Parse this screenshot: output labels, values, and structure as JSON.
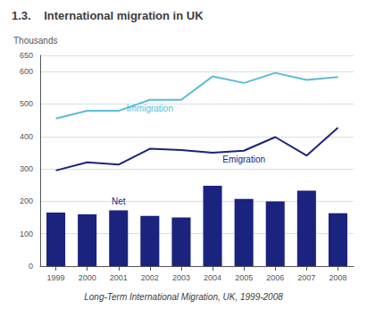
{
  "chart_data": {
    "type": "bar",
    "title": "1.3.    International migration in UK",
    "ylabel": "Thousands",
    "caption": "Long-Term International Migration, UK, 1999-2008",
    "categories": [
      "1999",
      "2000",
      "2001",
      "2002",
      "2003",
      "2004",
      "2005",
      "2006",
      "2007",
      "2008"
    ],
    "series": [
      {
        "type": "bar",
        "color": "#1a237e",
        "values": [
          165,
          160,
          172,
          155,
          150,
          248,
          207,
          200,
          233,
          163
        ]
      },
      {
        "type": "line",
        "color": "#5bbcd6",
        "values": [
          455,
          479,
          479,
          513,
          513,
          585,
          565,
          596,
          574,
          583
        ]
      },
      {
        "type": "line",
        "color": "#1a237e",
        "values": [
          295,
          320,
          313,
          362,
          358,
          350,
          356,
          398,
          341,
          427
        ]
      }
    ],
    "annotations": [
      {
        "text": "Net",
        "color": "#1a237e"
      },
      {
        "text": "Immigration",
        "color": "#5bbcd6"
      },
      {
        "text": "Emigration",
        "color": "#1a237e"
      }
    ],
    "ylim": [
      0,
      650
    ],
    "yticks": [
      0,
      100,
      200,
      300,
      400,
      500,
      600
    ],
    "grid": true
  }
}
